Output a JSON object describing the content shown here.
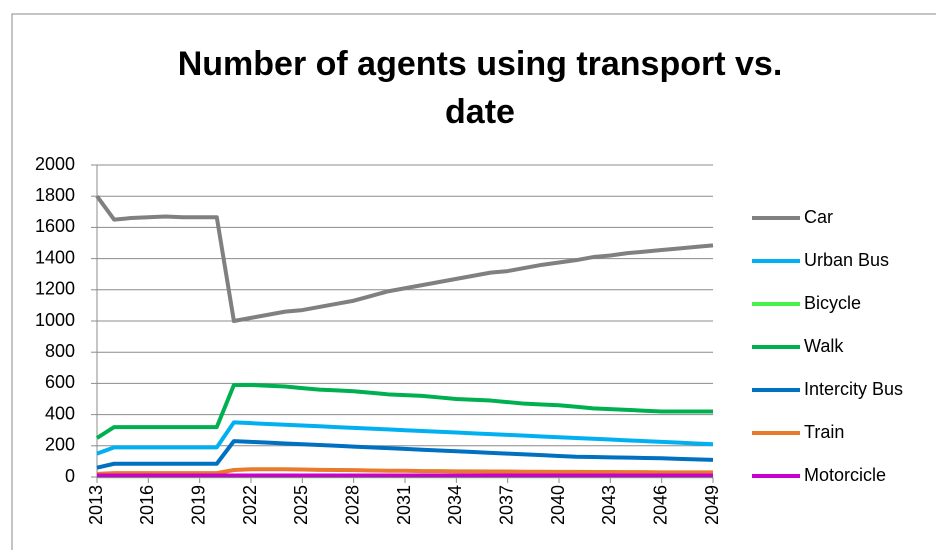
{
  "chart_data": {
    "type": "line",
    "title": "Number of agents using transport vs. date",
    "x": [
      2013,
      2014,
      2015,
      2016,
      2017,
      2018,
      2019,
      2020,
      2021,
      2022,
      2023,
      2024,
      2025,
      2026,
      2027,
      2028,
      2029,
      2030,
      2031,
      2032,
      2033,
      2034,
      2035,
      2036,
      2037,
      2038,
      2039,
      2040,
      2041,
      2042,
      2043,
      2044,
      2045,
      2046,
      2047,
      2048,
      2049
    ],
    "series": [
      {
        "name": "Car",
        "color": "#808080",
        "values": [
          1800,
          1650,
          1660,
          1665,
          1670,
          1665,
          1665,
          1665,
          1000,
          1020,
          1040,
          1060,
          1070,
          1090,
          1110,
          1130,
          1160,
          1190,
          1210,
          1230,
          1250,
          1270,
          1290,
          1310,
          1320,
          1340,
          1360,
          1375,
          1390,
          1410,
          1420,
          1435,
          1445,
          1455,
          1465,
          1475,
          1485
        ]
      },
      {
        "name": "Urban Bus",
        "color": "#00b0f0",
        "values": [
          150,
          190,
          190,
          190,
          190,
          190,
          190,
          190,
          350,
          345,
          340,
          335,
          330,
          325,
          320,
          315,
          310,
          305,
          300,
          295,
          290,
          285,
          280,
          275,
          270,
          265,
          260,
          255,
          250,
          245,
          240,
          235,
          230,
          225,
          220,
          215,
          210
        ]
      },
      {
        "name": "Bicycle",
        "color": "#4cf04c",
        "values": [
          5,
          5,
          5,
          5,
          5,
          5,
          5,
          5,
          5,
          5,
          5,
          5,
          5,
          5,
          5,
          5,
          5,
          5,
          5,
          5,
          5,
          5,
          5,
          5,
          5,
          5,
          5,
          5,
          5,
          5,
          5,
          5,
          5,
          5,
          5,
          5,
          5
        ]
      },
      {
        "name": "Walk",
        "color": "#00b050",
        "values": [
          250,
          320,
          320,
          320,
          320,
          320,
          320,
          320,
          590,
          590,
          585,
          580,
          570,
          560,
          555,
          550,
          540,
          530,
          525,
          520,
          510,
          500,
          495,
          490,
          480,
          470,
          465,
          460,
          450,
          440,
          435,
          430,
          425,
          420,
          420,
          420,
          420
        ]
      },
      {
        "name": "Intercity Bus",
        "color": "#0070c0",
        "values": [
          60,
          85,
          85,
          85,
          85,
          85,
          85,
          85,
          230,
          225,
          220,
          215,
          210,
          205,
          200,
          195,
          190,
          185,
          180,
          175,
          170,
          165,
          160,
          155,
          150,
          145,
          140,
          135,
          130,
          128,
          126,
          124,
          122,
          120,
          116,
          113,
          110
        ]
      },
      {
        "name": "Train",
        "color": "#e87a2c",
        "values": [
          20,
          25,
          25,
          25,
          25,
          25,
          25,
          25,
          45,
          50,
          50,
          50,
          48,
          46,
          45,
          44,
          42,
          40,
          40,
          38,
          38,
          36,
          36,
          35,
          35,
          34,
          34,
          33,
          33,
          32,
          32,
          31,
          31,
          30,
          30,
          30,
          30
        ]
      },
      {
        "name": "Motorcicle",
        "color": "#cc00cc",
        "values": [
          10,
          10,
          10,
          10,
          10,
          10,
          10,
          10,
          10,
          10,
          10,
          10,
          10,
          10,
          10,
          10,
          10,
          10,
          10,
          10,
          10,
          10,
          10,
          10,
          10,
          10,
          10,
          10,
          10,
          10,
          10,
          10,
          10,
          10,
          10,
          10,
          10
        ]
      }
    ],
    "xlim": [
      2013,
      2049
    ],
    "xticks": [
      2013,
      2016,
      2019,
      2022,
      2025,
      2028,
      2031,
      2034,
      2037,
      2040,
      2043,
      2046,
      2049
    ],
    "ylim": [
      0,
      2000
    ],
    "yticks": [
      0,
      200,
      400,
      600,
      800,
      1000,
      1200,
      1400,
      1600,
      1800,
      2000
    ],
    "grid": true,
    "legend": "right"
  }
}
